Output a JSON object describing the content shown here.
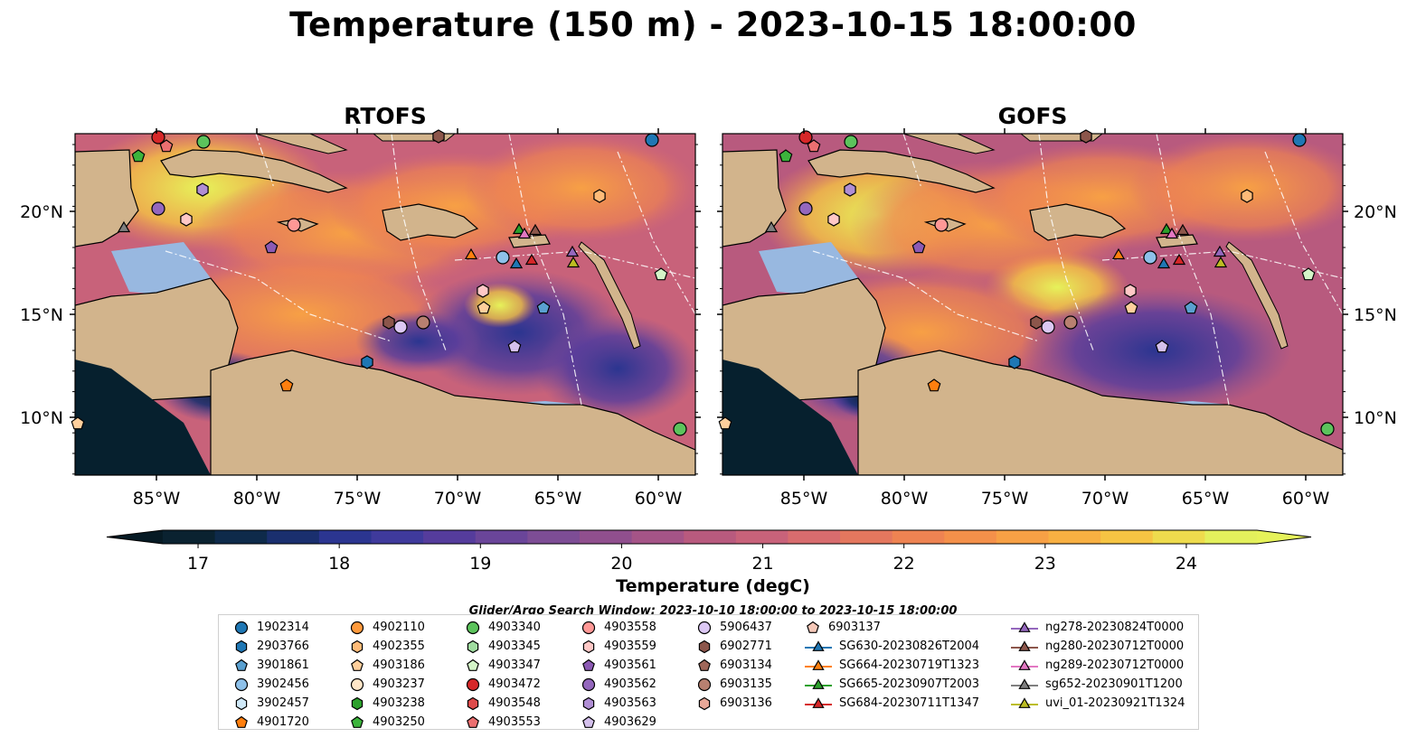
{
  "title": "Temperature (150 m) - 2023-10-15 18:00:00",
  "panels": [
    {
      "title": "RTOFS"
    },
    {
      "title": "GOFS"
    }
  ],
  "lat_ticks": [
    "20°N",
    "15°N",
    "10°N"
  ],
  "lon_ticks": [
    "85°W",
    "80°W",
    "75°W",
    "70°W",
    "65°W",
    "60°W"
  ],
  "colorbar": {
    "label": "Temperature (degC)",
    "ticks": [
      "17",
      "18",
      "19",
      "20",
      "21",
      "22",
      "23",
      "24"
    ],
    "range": [
      16.75,
      24.5
    ],
    "extend": "both",
    "colors": [
      "#0a2230",
      "#0e2a4a",
      "#1a2f6e",
      "#2b3590",
      "#3f3a9c",
      "#553c9c",
      "#6a4599",
      "#7d4d95",
      "#904f8e",
      "#a55487",
      "#b85a7e",
      "#c8627a",
      "#d86c6e",
      "#e4775e",
      "#ee8352",
      "#f4904a",
      "#f7a045",
      "#f8b042",
      "#f6c443",
      "#eedb4d",
      "#e3f05c"
    ],
    "under_color": "#061a24",
    "over_color": "#e6f25a"
  },
  "search_window": "Glider/Argo Search Window: 2023-10-10 18:00:00 to 2023-10-15 18:00:00",
  "legend": {
    "columns": [
      [
        {
          "label": "1902314",
          "marker": "circle",
          "color": "#1f77b4"
        },
        {
          "label": "2903766",
          "marker": "hexagon",
          "color": "#1f77b4"
        },
        {
          "label": "3901861",
          "marker": "pentagon",
          "color": "#5aa0d0"
        },
        {
          "label": "3902456",
          "marker": "circle",
          "color": "#8ec1ea"
        },
        {
          "label": "3902457",
          "marker": "hexagon",
          "color": "#cfe8f7"
        },
        {
          "label": "4901720",
          "marker": "pentagon",
          "color": "#ff7f0e"
        }
      ],
      [
        {
          "label": "4902110",
          "marker": "circle",
          "color": "#ff9a3c"
        },
        {
          "label": "4902355",
          "marker": "hexagon",
          "color": "#ffbb78"
        },
        {
          "label": "4903186",
          "marker": "pentagon",
          "color": "#ffcf9c"
        },
        {
          "label": "4903237",
          "marker": "circle",
          "color": "#ffe6c8"
        },
        {
          "label": "4903238",
          "marker": "hexagon",
          "color": "#2ca02c"
        },
        {
          "label": "4903250",
          "marker": "pentagon",
          "color": "#3cb43c"
        }
      ],
      [
        {
          "label": "4903340",
          "marker": "circle",
          "color": "#5cc35c"
        },
        {
          "label": "4903345",
          "marker": "hexagon",
          "color": "#a0dca0"
        },
        {
          "label": "4903347",
          "marker": "pentagon",
          "color": "#d4f5c8"
        },
        {
          "label": "4903472",
          "marker": "circle",
          "color": "#d62728"
        },
        {
          "label": "4903548",
          "marker": "hexagon",
          "color": "#dd4b4b"
        },
        {
          "label": "4903553",
          "marker": "pentagon",
          "color": "#ec6f70"
        }
      ],
      [
        {
          "label": "4903558",
          "marker": "circle",
          "color": "#ff9896"
        },
        {
          "label": "4903559",
          "marker": "hexagon",
          "color": "#ffc8c6"
        },
        {
          "label": "4903561",
          "marker": "pentagon",
          "color": "#8c5ab4"
        },
        {
          "label": "4903562",
          "marker": "circle",
          "color": "#9467bd"
        },
        {
          "label": "4903563",
          "marker": "hexagon",
          "color": "#b08ed4"
        },
        {
          "label": "4903629",
          "marker": "pentagon",
          "color": "#d4c0ec"
        }
      ],
      [
        {
          "label": "5906437",
          "marker": "circle",
          "color": "#dcc8f4"
        },
        {
          "label": "6902771",
          "marker": "hexagon",
          "color": "#8c564b"
        },
        {
          "label": "6903134",
          "marker": "pentagon",
          "color": "#a0675a"
        },
        {
          "label": "6903135",
          "marker": "circle",
          "color": "#b88070"
        },
        {
          "label": "6903136",
          "marker": "hexagon",
          "color": "#e8a898"
        },
        {
          "label": "",
          "marker": "none",
          "color": "#ffffff"
        }
      ],
      [
        {
          "label": "6903137",
          "marker": "pentagon",
          "color": "#f6c8b8"
        },
        {
          "label": "SG630-20230826T2004",
          "marker": "triangle-line",
          "color": "#1f77b4"
        },
        {
          "label": "SG664-20230719T1323",
          "marker": "triangle-line",
          "color": "#ff7f0e"
        },
        {
          "label": "SG665-20230907T2003",
          "marker": "triangle-line",
          "color": "#2ca02c"
        },
        {
          "label": "SG684-20230711T1347",
          "marker": "triangle-line",
          "color": "#d62728"
        },
        {
          "label": "",
          "marker": "none",
          "color": "#ffffff"
        }
      ],
      [
        {
          "label": "ng278-20230824T0000",
          "marker": "triangle-line",
          "color": "#9467bd"
        },
        {
          "label": "ng280-20230712T0000",
          "marker": "triangle-line",
          "color": "#8c564b"
        },
        {
          "label": "ng289-20230712T0000",
          "marker": "triangle-line",
          "color": "#e377c2"
        },
        {
          "label": "sg652-20230901T1200",
          "marker": "triangle-line",
          "color": "#7f7f7f"
        },
        {
          "label": "uvi_01-20230921T1324",
          "marker": "triangle-line",
          "color": "#bcbd22"
        },
        {
          "label": "",
          "marker": "none",
          "color": "#ffffff"
        }
      ]
    ]
  }
}
